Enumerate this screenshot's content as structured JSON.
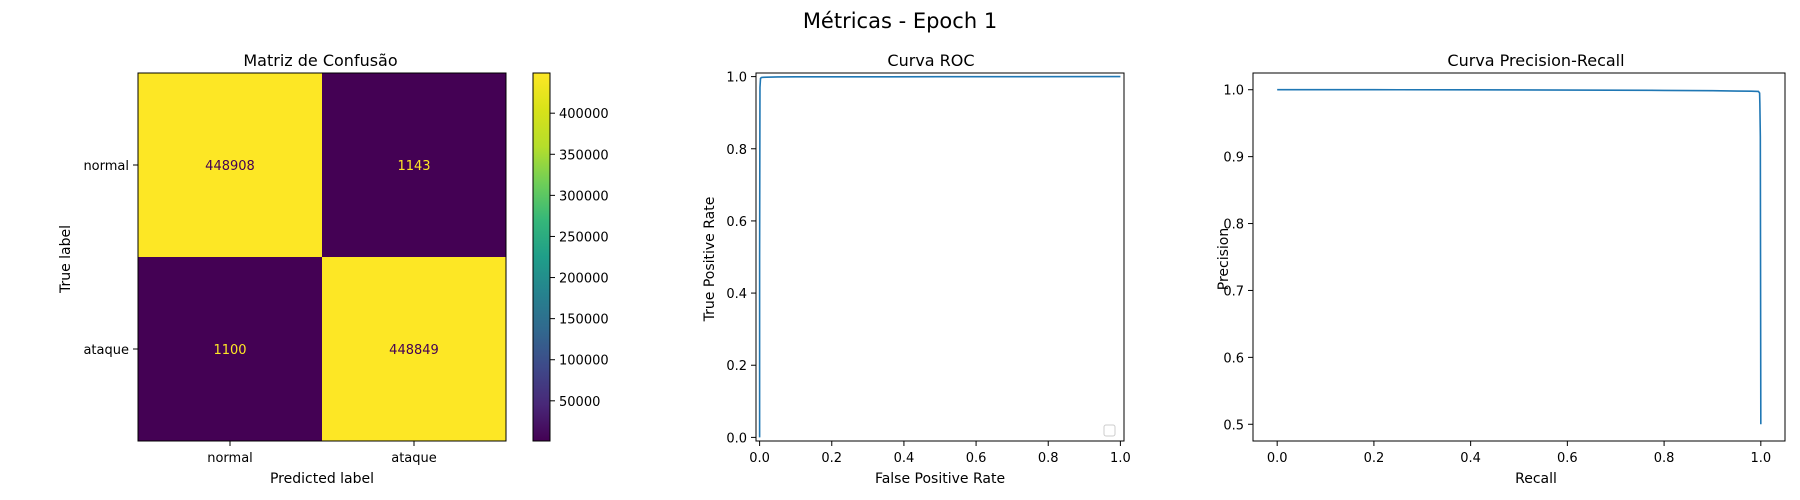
{
  "figure": {
    "suptitle": "Métricas - Epoch 1"
  },
  "chart_data": [
    {
      "type": "heatmap",
      "title": "Matriz de Confusão",
      "xlabel": "Predicted label",
      "ylabel": "True label",
      "x_categories": [
        "normal",
        "ataque"
      ],
      "y_categories": [
        "normal",
        "ataque"
      ],
      "values": [
        [
          448908,
          1143
        ],
        [
          1100,
          448849
        ]
      ],
      "cell_colors": [
        [
          "#fde725",
          "#440154"
        ],
        [
          "#440154",
          "#fde725"
        ]
      ],
      "text_colors": [
        [
          "#440154",
          "#fde725"
        ],
        [
          "#fde725",
          "#440154"
        ]
      ],
      "colorbar": {
        "colormap": "viridis",
        "range": [
          1100,
          448908
        ],
        "ticks": [
          50000,
          100000,
          150000,
          200000,
          250000,
          300000,
          350000,
          400000
        ]
      }
    },
    {
      "type": "line",
      "title": "Curva ROC",
      "xlabel": "False Positive Rate",
      "ylabel": "True Positive Rate",
      "xlim": [
        -0.01,
        1.01
      ],
      "ylim": [
        -0.01,
        1.01
      ],
      "xticks": [
        0.0,
        0.2,
        0.4,
        0.6,
        0.8,
        1.0
      ],
      "yticks": [
        0.0,
        0.2,
        0.4,
        0.6,
        0.8,
        1.0
      ],
      "legend": "lower-right (empty)",
      "series": [
        {
          "color": "#1f77b4",
          "x": [
            0.0,
            0.0,
            0.001,
            0.0025,
            0.005,
            0.01,
            0.02,
            0.05,
            0.1,
            0.5,
            1.0
          ],
          "y": [
            0.0,
            0.5,
            0.97,
            0.995,
            0.9975,
            0.998,
            0.9985,
            0.999,
            0.9993,
            0.9997,
            1.0
          ]
        }
      ]
    },
    {
      "type": "line",
      "title": "Curva Precision-Recall",
      "xlabel": "Recall",
      "ylabel": "Precision",
      "xlim": [
        -0.05,
        1.05
      ],
      "ylim": [
        0.475,
        1.025
      ],
      "xticks": [
        0.0,
        0.2,
        0.4,
        0.6,
        0.8,
        1.0
      ],
      "yticks": [
        0.5,
        0.6,
        0.7,
        0.8,
        0.9,
        1.0
      ],
      "series": [
        {
          "color": "#1f77b4",
          "x": [
            0.0,
            0.2,
            0.4,
            0.6,
            0.8,
            0.9,
            0.95,
            0.98,
            0.995,
            0.9975,
            0.998,
            0.999,
            1.0
          ],
          "y": [
            1.0,
            1.0,
            0.9998,
            0.9995,
            0.999,
            0.9985,
            0.998,
            0.9978,
            0.9975,
            0.995,
            0.98,
            0.93,
            0.5
          ]
        }
      ]
    }
  ]
}
